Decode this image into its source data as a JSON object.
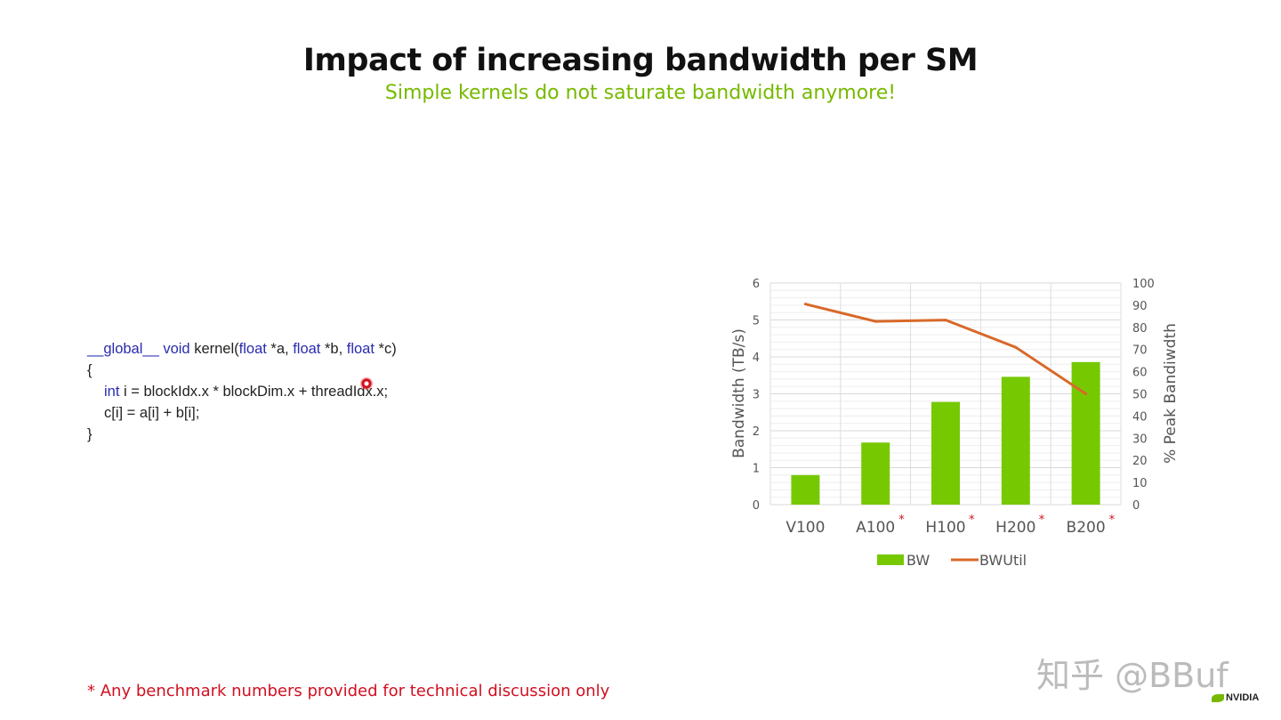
{
  "title": "Impact of increasing bandwidth per SM",
  "subtitle": "Simple kernels do not saturate bandwidth anymore!",
  "code": {
    "line1": {
      "kw1": "__global__",
      "t1": " ",
      "kw2": "void",
      "t2": " kernel(",
      "kw3": "float",
      "t3": " *a, ",
      "kw4": "float",
      "t4": " *b, ",
      "kw5": "float",
      "t5": " *c)"
    },
    "line2": "{",
    "line3": {
      "kw": "int",
      "rest": " i = blockIdx.x * blockDim.x + threadIdx.x;"
    },
    "line4": "c[i] = a[i] + b[i];",
    "line5": "}"
  },
  "footnote": "* Any benchmark numbers provided for technical discussion only",
  "watermark": "知乎 @BBuf",
  "logo": "NVIDIA",
  "chart_data": {
    "type": "bar+line",
    "categories": [
      "V100",
      "A100",
      "H100",
      "H200",
      "B200"
    ],
    "category_marks": [
      "",
      "*",
      "*",
      "*",
      "*"
    ],
    "series": [
      {
        "name": "BW",
        "type": "bar",
        "axis": "left",
        "values": [
          0.8,
          1.68,
          2.78,
          3.46,
          3.86
        ],
        "color": "#76c900"
      },
      {
        "name": "BWUtil",
        "type": "line",
        "axis": "right",
        "values": [
          90.5,
          82.7,
          83.3,
          71,
          50
        ],
        "color": "#d8692a"
      }
    ],
    "ylabel": "Bandwidth (TB/s)",
    "ylabel_right": "% Peak Bandiwdth",
    "ylim": [
      0,
      6
    ],
    "yticks": [
      "0",
      "1",
      "2",
      "3",
      "4",
      "5",
      "6"
    ],
    "ylim_right": [
      0,
      100
    ],
    "yticks_right": [
      "0",
      "10",
      "20",
      "30",
      "40",
      "50",
      "60",
      "70",
      "80",
      "90",
      "100"
    ],
    "grid": true,
    "legend_position": "bottom"
  }
}
